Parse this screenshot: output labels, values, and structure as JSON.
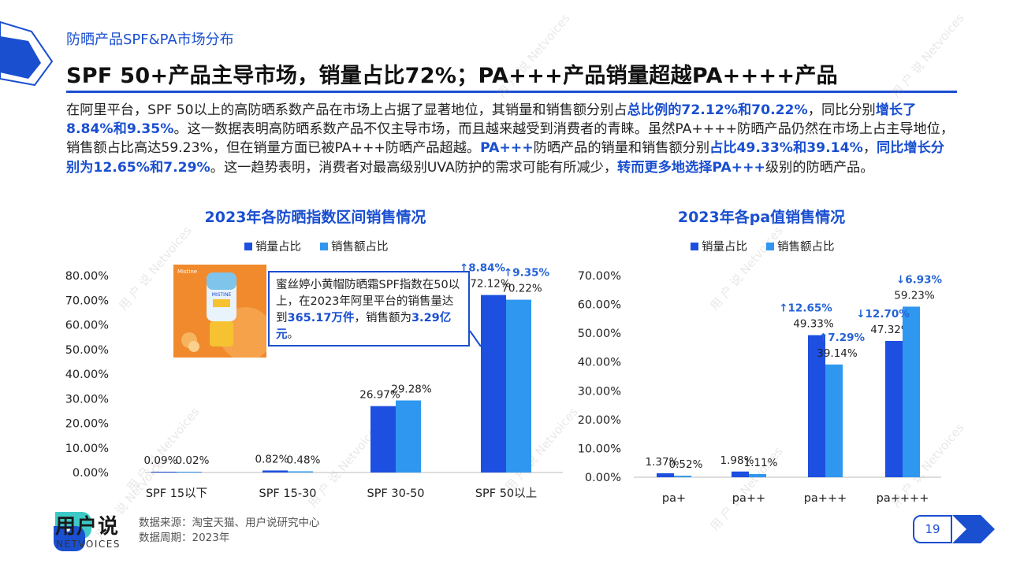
{
  "header": {
    "section_label": "防晒产品SPF&PA市场分布",
    "title": "SPF 50+产品主导市场，销量占比72%；PA+++产品销量超越PA++++产品"
  },
  "paragraph": {
    "s1": "在阿里平台，SPF  50以上的高防晒系数产品在市场上占据了显著地位，其销量和销售额分别占",
    "s2": "总比例的72.12%和70.22%",
    "s3": "，同比分别",
    "s4": "增长了8.84%和9.35%",
    "s5": "。这一数据表明高防晒系数产品不仅主导市场，而且越来越受到消费者的青睐。虽然PA++++防晒产品仍然在市场上占主导地位，销售额占比高达59.23%，但在销量方面已被PA+++防晒产品超越。",
    "s6": "PA+++",
    "s7": "防晒产品的销量和销售额分别",
    "s8": "占比49.33%和39.14%",
    "s9": "，",
    "s10": "同比增长分别为12.65%和7.29%",
    "s11": "。这一趋势表明，消费者对最高级别UVA防护的需求可能有所减少，",
    "s12": "转而更多地选择PA+++",
    "s13": "级别的防晒产品。"
  },
  "callout": {
    "t1": "蜜丝婷小黄帽防晒霜SPF指数在50以上，在2023年阿里平台的销售量达到",
    "t2": "365.17万件",
    "t3": "，销售额为",
    "t4": "3.29亿元",
    "t5": "。"
  },
  "product_image": {
    "brand": "Mistine",
    "name": "MISTINE"
  },
  "colors": {
    "accent": "#1a4fd0",
    "series_volume": "#1d4fe0",
    "series_sales": "#2f97ef",
    "growth_text": "#2563d6"
  },
  "chart_data": [
    {
      "type": "bar",
      "title": "2023年各防晒指数区间销售情况",
      "categories": [
        "SPF 15以下",
        "SPF 15-30",
        "SPF 30-50",
        "SPF 50以上"
      ],
      "series": [
        {
          "name": "销量占比",
          "values": [
            0.09,
            0.82,
            26.97,
            72.12
          ],
          "labels": [
            "0.09%",
            "0.82%",
            "26.97%",
            "72.12%"
          ]
        },
        {
          "name": "销售额占比",
          "values": [
            0.02,
            0.48,
            29.28,
            70.22
          ],
          "labels": [
            "0.02%",
            "0.48%",
            "29.28%",
            "70.22%"
          ]
        }
      ],
      "yticks": [
        "0.00%",
        "10.00%",
        "20.00%",
        "30.00%",
        "40.00%",
        "50.00%",
        "60.00%",
        "70.00%",
        "80.00%"
      ],
      "ylim": [
        0,
        80
      ],
      "legend": "top",
      "annotations": [
        {
          "category": 3,
          "series": 0,
          "text": "↑8.84%"
        },
        {
          "category": 3,
          "series": 1,
          "text": "↑9.35%"
        }
      ]
    },
    {
      "type": "bar",
      "title": "2023年各pa值销售情况",
      "categories": [
        "pa+",
        "pa++",
        "pa+++",
        "pa++++"
      ],
      "series": [
        {
          "name": "销量占比",
          "values": [
            1.37,
            1.98,
            49.33,
            47.32
          ],
          "labels": [
            "1.37%",
            "1.98%",
            "49.33%",
            "47.32%"
          ]
        },
        {
          "name": "销售额占比",
          "values": [
            0.52,
            1.11,
            39.14,
            59.23
          ],
          "labels": [
            "0.52%",
            "1.11%",
            "39.14%",
            "59.23%"
          ]
        }
      ],
      "yticks": [
        "0.00%",
        "10.00%",
        "20.00%",
        "30.00%",
        "40.00%",
        "50.00%",
        "60.00%",
        "70.00%"
      ],
      "ylim": [
        0,
        70
      ],
      "legend": "top",
      "annotations": [
        {
          "category": 2,
          "series": 0,
          "text": "↑12.65%"
        },
        {
          "category": 2,
          "series": 1,
          "text": "↑7.29%"
        },
        {
          "category": 3,
          "series": 0,
          "text": "↓12.70%"
        },
        {
          "category": 3,
          "series": 1,
          "text": "↓6.93%"
        }
      ]
    }
  ],
  "footer": {
    "logo_cn": "用户说",
    "logo_en": "NETVOICES",
    "source_line1": "数据来源：淘宝天猫、用户说研究中心",
    "source_line2": "数据周期：2023年",
    "page_number": "19"
  },
  "watermark": {
    "cn": "用 户 说",
    "en": "Netvoices"
  }
}
